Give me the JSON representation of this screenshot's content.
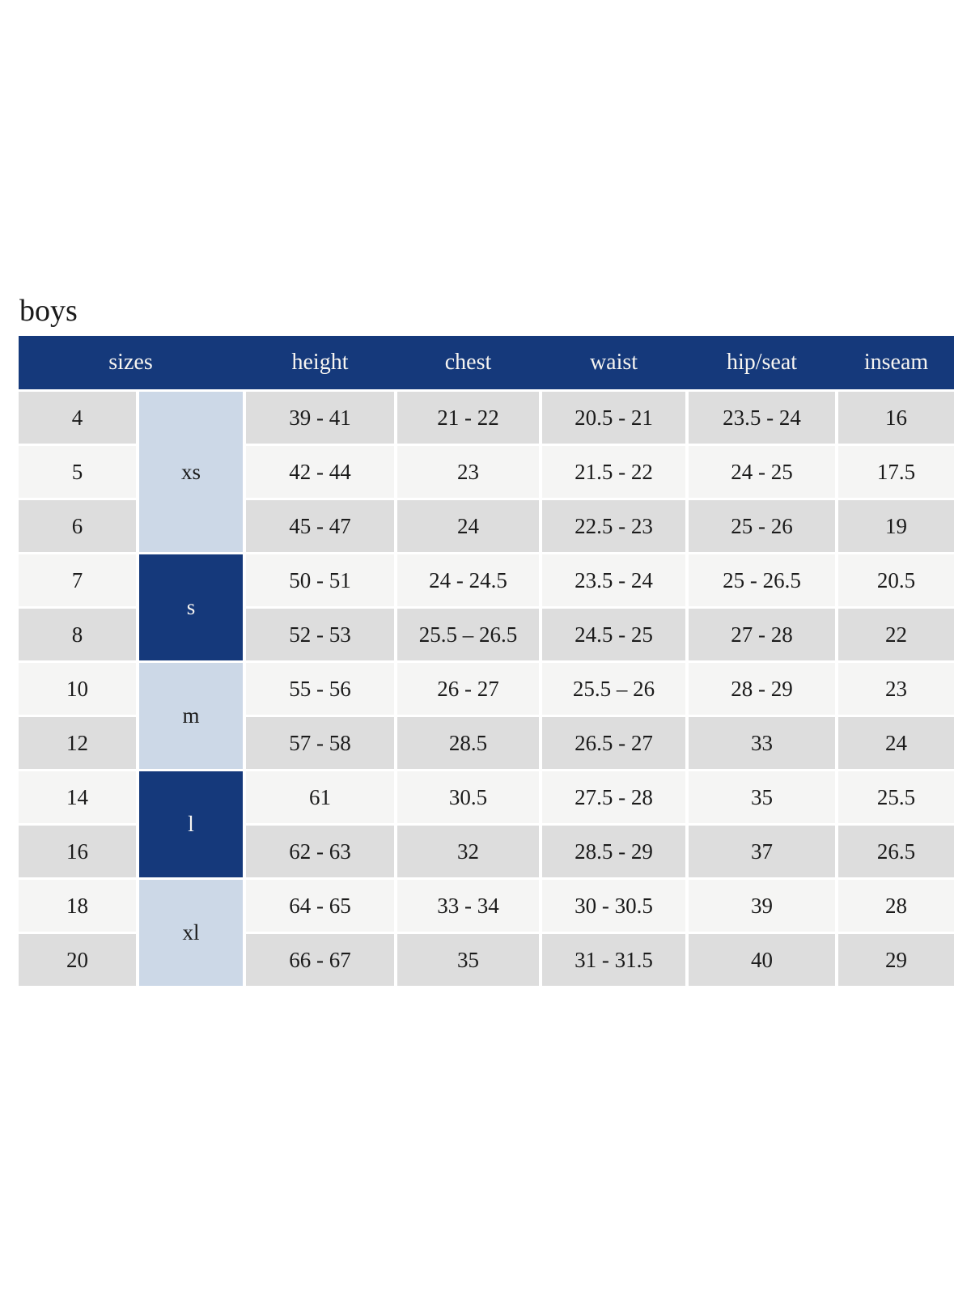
{
  "page_title": "boys",
  "colors": {
    "header_bg": "#15397b",
    "group_dark_bg": "#15397b",
    "group_light_bg": "#ccd8e7",
    "row_gray_bg": "#dddddd",
    "row_light_bg": "#f5f5f4",
    "header_text": "#f7f5f1",
    "body_text": "#1b1b1b"
  },
  "chart_data": {
    "type": "table",
    "title": "boys",
    "headers": [
      "sizes",
      "height",
      "chest",
      "waist",
      "hip/seat",
      "inseam"
    ],
    "groups": [
      {
        "label": "xs",
        "spans_rows": 3,
        "tone": "light"
      },
      {
        "label": "s",
        "spans_rows": 2,
        "tone": "dark"
      },
      {
        "label": "m",
        "spans_rows": 2,
        "tone": "light"
      },
      {
        "label": "l",
        "spans_rows": 2,
        "tone": "dark"
      },
      {
        "label": "xl",
        "spans_rows": 2,
        "tone": "light"
      }
    ],
    "rows": [
      {
        "size": "4",
        "group": "xs",
        "height": "39 - 41",
        "chest": "21 - 22",
        "waist": "20.5 - 21",
        "hip_seat": "23.5 - 24",
        "inseam": "16"
      },
      {
        "size": "5",
        "group": "xs",
        "height": "42 - 44",
        "chest": "23",
        "waist": "21.5 - 22",
        "hip_seat": "24 - 25",
        "inseam": "17.5"
      },
      {
        "size": "6",
        "group": "xs",
        "height": "45 - 47",
        "chest": "24",
        "waist": "22.5 - 23",
        "hip_seat": "25 - 26",
        "inseam": "19"
      },
      {
        "size": "7",
        "group": "s",
        "height": "50 - 51",
        "chest": "24 - 24.5",
        "waist": "23.5 - 24",
        "hip_seat": "25 - 26.5",
        "inseam": "20.5"
      },
      {
        "size": "8",
        "group": "s",
        "height": "52 - 53",
        "chest": "25.5 – 26.5",
        "waist": "24.5 - 25",
        "hip_seat": "27 - 28",
        "inseam": "22"
      },
      {
        "size": "10",
        "group": "m",
        "height": "55 - 56",
        "chest": "26 - 27",
        "waist": "25.5 – 26",
        "hip_seat": "28 - 29",
        "inseam": "23"
      },
      {
        "size": "12",
        "group": "m",
        "height": "57 - 58",
        "chest": "28.5",
        "waist": "26.5 - 27",
        "hip_seat": "33",
        "inseam": "24"
      },
      {
        "size": "14",
        "group": "l",
        "height": "61",
        "chest": "30.5",
        "waist": "27.5 - 28",
        "hip_seat": "35",
        "inseam": "25.5"
      },
      {
        "size": "16",
        "group": "l",
        "height": "62 - 63",
        "chest": "32",
        "waist": "28.5 - 29",
        "hip_seat": "37",
        "inseam": "26.5"
      },
      {
        "size": "18",
        "group": "xl",
        "height": "64 - 65",
        "chest": "33 - 34",
        "waist": "30 - 30.5",
        "hip_seat": "39",
        "inseam": "28"
      },
      {
        "size": "20",
        "group": "xl",
        "height": "66 - 67",
        "chest": "35",
        "waist": "31 - 31.5",
        "hip_seat": "40",
        "inseam": "29"
      }
    ]
  }
}
